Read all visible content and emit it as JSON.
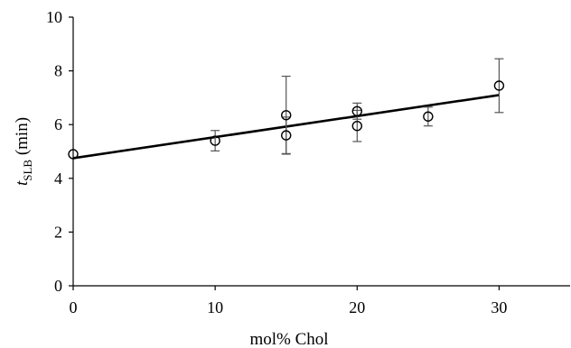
{
  "chart_data": {
    "type": "scatter",
    "xlabel": "mol% Chol",
    "ylabel_main": "t",
    "ylabel_sub": "SLB",
    "ylabel_unit": " (min)",
    "xlim": [
      0,
      35
    ],
    "ylim": [
      0,
      10
    ],
    "xticks": [
      0,
      10,
      20,
      30
    ],
    "yticks": [
      0,
      2,
      4,
      6,
      8,
      10
    ],
    "grid": false,
    "points": [
      {
        "x": 0,
        "y": 4.9,
        "err": 0
      },
      {
        "x": 10,
        "y": 5.4,
        "err": 0.38
      },
      {
        "x": 15,
        "y": 6.35,
        "err": 1.45
      },
      {
        "x": 15,
        "y": 5.6,
        "err": 0.68
      },
      {
        "x": 20,
        "y": 6.5,
        "err": 0.3
      },
      {
        "x": 20,
        "y": 5.95,
        "err": 0.58
      },
      {
        "x": 25,
        "y": 6.3,
        "err": 0.35
      },
      {
        "x": 30,
        "y": 7.45,
        "err": 1.0
      }
    ],
    "fit": {
      "x": [
        0,
        30
      ],
      "y": [
        4.75,
        7.1
      ]
    }
  }
}
